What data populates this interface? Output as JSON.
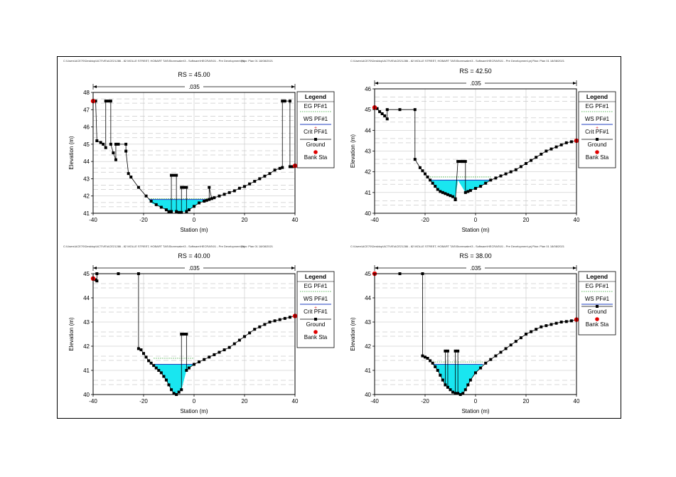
{
  "header": {
    "path": "C:\\Users\\ACE70\\Desktop\\ACTIVE\\ACE21286 - 82 MOLLE STREET, HOBART TAS\\Stormwater\\3 - Software\\HECRAS\\01 - Pre Development.prj",
    "plan": "Plan: Plan 01    18/08/2021"
  },
  "legend": {
    "title": "Legend",
    "items": [
      {
        "key": "eg",
        "label": "EG PF#1",
        "color": "#2ca02c"
      },
      {
        "key": "ws",
        "label": "WS PF#1",
        "color": "#1f3fbf"
      },
      {
        "key": "crit",
        "label": "Crit PF#1",
        "color": "#e0282e"
      },
      {
        "key": "ground",
        "label": "Ground",
        "color": "#000000"
      },
      {
        "key": "bank",
        "label": "Bank Sta",
        "color": "#e00000"
      }
    ]
  },
  "chart_data": [
    {
      "type": "line",
      "title": "RS = 45.00",
      "xlabel": "Station (m)",
      "ylabel": "Elevation (m)",
      "manning": ".035",
      "xlim": [
        -40,
        40
      ],
      "ylim": [
        41,
        48
      ],
      "xticks": [
        -40,
        -20,
        0,
        20,
        40
      ],
      "yticks": [
        41,
        42,
        43,
        44,
        45,
        46,
        47,
        48
      ],
      "grid": true,
      "legend_position": "right",
      "legend_items": [
        "eg",
        "ws",
        "crit",
        "ground",
        "bank"
      ],
      "ws": 41.8,
      "eg": 41.85,
      "ground": [
        [
          -40,
          47.5
        ],
        [
          -39,
          47.5
        ],
        [
          -38.5,
          45.2
        ],
        [
          -37,
          45.1
        ],
        [
          -36,
          45.0
        ],
        [
          -35,
          44.8
        ],
        [
          -35,
          47.5
        ],
        [
          -34,
          47.5
        ],
        [
          -33,
          47.5
        ],
        [
          -33,
          45.0
        ],
        [
          -32,
          44.5
        ],
        [
          -31,
          44.1
        ],
        [
          -31,
          45.0
        ],
        [
          -30,
          45.0
        ],
        [
          -27,
          45.0
        ],
        [
          -27,
          44.6
        ],
        [
          -26,
          43.3
        ],
        [
          -25,
          43.1
        ],
        [
          -22,
          42.5
        ],
        [
          -19,
          42.0
        ],
        [
          -17,
          41.7
        ],
        [
          -15,
          41.5
        ],
        [
          -13,
          41.35
        ],
        [
          -11,
          41.2
        ],
        [
          -10,
          41.1
        ],
        [
          -9,
          41.1
        ],
        [
          -9,
          43.2
        ],
        [
          -8,
          43.2
        ],
        [
          -7,
          43.2
        ],
        [
          -7,
          41.1
        ],
        [
          -6,
          41.05
        ],
        [
          -5,
          41.05
        ],
        [
          -5,
          42.5
        ],
        [
          -4,
          42.5
        ],
        [
          -4,
          42.5
        ],
        [
          -3,
          42.5
        ],
        [
          -3,
          41.1
        ],
        [
          -2,
          41.2
        ],
        [
          0,
          41.4
        ],
        [
          2,
          41.6
        ],
        [
          4,
          41.7
        ],
        [
          5,
          41.75
        ],
        [
          6,
          41.8
        ],
        [
          6,
          42.5
        ],
        [
          7,
          41.85
        ],
        [
          8,
          41.9
        ],
        [
          10,
          42.0
        ],
        [
          12,
          42.1
        ],
        [
          14,
          42.2
        ],
        [
          16,
          42.3
        ],
        [
          18,
          42.45
        ],
        [
          20,
          42.55
        ],
        [
          22,
          42.7
        ],
        [
          24,
          42.85
        ],
        [
          26,
          43.0
        ],
        [
          28,
          43.15
        ],
        [
          30,
          43.3
        ],
        [
          32,
          43.5
        ],
        [
          34,
          43.6
        ],
        [
          35,
          43.65
        ],
        [
          35,
          47.5
        ],
        [
          36,
          47.5
        ],
        [
          38,
          47.5
        ],
        [
          38,
          43.7
        ],
        [
          39,
          43.7
        ],
        [
          40,
          43.75
        ]
      ],
      "water": [
        [
          -18,
          41.8
        ],
        [
          -16.5,
          41.55
        ],
        [
          -15,
          41.5
        ],
        [
          -13,
          41.35
        ],
        [
          -11,
          41.2
        ],
        [
          -9,
          41.1
        ],
        [
          -7,
          41.1
        ],
        [
          -6,
          41.05
        ],
        [
          -3,
          41.1
        ],
        [
          0,
          41.4
        ],
        [
          2,
          41.6
        ],
        [
          4,
          41.7
        ],
        [
          6,
          41.8
        ]
      ],
      "bank": [
        [
          -40,
          47.5
        ],
        [
          40,
          43.75
        ]
      ]
    },
    {
      "type": "line",
      "title": "RS = 42.50",
      "xlabel": "Station (m)",
      "ylabel": "Elevation (m)",
      "manning": ".035",
      "xlim": [
        -40,
        40
      ],
      "ylim": [
        40,
        46
      ],
      "xticks": [
        -40,
        -20,
        0,
        20,
        40
      ],
      "yticks": [
        40,
        41,
        42,
        43,
        44,
        45,
        46
      ],
      "grid": true,
      "legend_position": "right",
      "legend_items": [
        "eg",
        "ws",
        "crit",
        "ground",
        "bank"
      ],
      "ws": 41.6,
      "eg": 41.75,
      "ground": [
        [
          -40,
          45.1
        ],
        [
          -39,
          45.05
        ],
        [
          -38,
          44.9
        ],
        [
          -37,
          44.8
        ],
        [
          -36,
          44.7
        ],
        [
          -35,
          44.55
        ],
        [
          -35,
          45.0
        ],
        [
          -30,
          45.0
        ],
        [
          -24,
          45.0
        ],
        [
          -24,
          42.6
        ],
        [
          -22,
          42.2
        ],
        [
          -21,
          42.05
        ],
        [
          -20,
          41.9
        ],
        [
          -19,
          41.75
        ],
        [
          -18,
          41.6
        ],
        [
          -17,
          41.45
        ],
        [
          -16,
          41.3
        ],
        [
          -15,
          41.15
        ],
        [
          -14,
          41.05
        ],
        [
          -13,
          41.0
        ],
        [
          -12,
          40.95
        ],
        [
          -11,
          40.9
        ],
        [
          -10,
          40.85
        ],
        [
          -9,
          40.8
        ],
        [
          -8,
          40.7
        ],
        [
          -8,
          40.65
        ],
        [
          -7,
          42.5
        ],
        [
          -6,
          42.5
        ],
        [
          -5,
          42.5
        ],
        [
          -4,
          42.5
        ],
        [
          -4,
          41.0
        ],
        [
          -3,
          41.05
        ],
        [
          -2,
          41.1
        ],
        [
          0,
          41.2
        ],
        [
          2,
          41.3
        ],
        [
          4,
          41.45
        ],
        [
          6,
          41.6
        ],
        [
          8,
          41.7
        ],
        [
          10,
          41.8
        ],
        [
          12,
          41.9
        ],
        [
          14,
          42.0
        ],
        [
          16,
          42.1
        ],
        [
          18,
          42.25
        ],
        [
          20,
          42.4
        ],
        [
          22,
          42.55
        ],
        [
          24,
          42.7
        ],
        [
          26,
          42.85
        ],
        [
          28,
          43.0
        ],
        [
          30,
          43.1
        ],
        [
          32,
          43.2
        ],
        [
          34,
          43.3
        ],
        [
          36,
          43.4
        ],
        [
          38,
          43.45
        ],
        [
          40,
          43.5
        ]
      ],
      "water": [
        [
          -18,
          41.6
        ],
        [
          -17,
          41.45
        ],
        [
          -16,
          41.3
        ],
        [
          -15,
          41.15
        ],
        [
          -14,
          41.05
        ],
        [
          -13,
          41.0
        ],
        [
          -11,
          40.9
        ],
        [
          -9,
          40.8
        ],
        [
          -8,
          40.7
        ],
        [
          -7,
          41.6
        ],
        [
          -4,
          41.0
        ],
        [
          -2,
          41.1
        ],
        [
          0,
          41.2
        ],
        [
          2,
          41.3
        ],
        [
          4,
          41.45
        ],
        [
          6,
          41.6
        ]
      ],
      "bank": [
        [
          -40,
          45.1
        ],
        [
          40,
          43.5
        ]
      ]
    },
    {
      "type": "line",
      "title": "RS = 40.00",
      "xlabel": "Station (m)",
      "ylabel": "Elevation (m)",
      "manning": ".035",
      "xlim": [
        -40,
        40
      ],
      "ylim": [
        40,
        45
      ],
      "xticks": [
        -40,
        -20,
        0,
        20,
        40
      ],
      "yticks": [
        40,
        41,
        42,
        43,
        44,
        45
      ],
      "grid": true,
      "legend_position": "right",
      "legend_items": [
        "eg",
        "ws",
        "crit",
        "ground",
        "bank"
      ],
      "ws": 41.25,
      "eg": 41.5,
      "ground": [
        [
          -40,
          44.8
        ],
        [
          -39,
          44.75
        ],
        [
          -38.5,
          44.7
        ],
        [
          -38.5,
          45.0
        ],
        [
          -30,
          45.0
        ],
        [
          -22,
          45.0
        ],
        [
          -22,
          41.9
        ],
        [
          -21,
          41.85
        ],
        [
          -20,
          41.7
        ],
        [
          -19,
          41.55
        ],
        [
          -18,
          41.4
        ],
        [
          -17,
          41.3
        ],
        [
          -16,
          41.2
        ],
        [
          -15,
          41.1
        ],
        [
          -14,
          41.0
        ],
        [
          -13,
          40.9
        ],
        [
          -12,
          40.75
        ],
        [
          -11,
          40.6
        ],
        [
          -10,
          40.4
        ],
        [
          -9,
          40.2
        ],
        [
          -8,
          40.05
        ],
        [
          -7,
          40.0
        ],
        [
          -6,
          40.1
        ],
        [
          -5,
          40.2
        ],
        [
          -5,
          42.5
        ],
        [
          -4,
          42.5
        ],
        [
          -3,
          42.5
        ],
        [
          -3,
          41.0
        ],
        [
          -2,
          41.1
        ],
        [
          0,
          41.25
        ],
        [
          2,
          41.35
        ],
        [
          4,
          41.45
        ],
        [
          6,
          41.55
        ],
        [
          8,
          41.65
        ],
        [
          10,
          41.75
        ],
        [
          12,
          41.85
        ],
        [
          14,
          41.95
        ],
        [
          16,
          42.1
        ],
        [
          18,
          42.25
        ],
        [
          20,
          42.4
        ],
        [
          22,
          42.55
        ],
        [
          24,
          42.7
        ],
        [
          26,
          42.8
        ],
        [
          28,
          42.9
        ],
        [
          30,
          43.0
        ],
        [
          32,
          43.05
        ],
        [
          34,
          43.1
        ],
        [
          36,
          43.15
        ],
        [
          38,
          43.2
        ],
        [
          40,
          43.25
        ]
      ],
      "water": [
        [
          -16,
          41.25
        ],
        [
          -15,
          41.1
        ],
        [
          -14,
          41.0
        ],
        [
          -13,
          40.9
        ],
        [
          -12,
          40.75
        ],
        [
          -11,
          40.6
        ],
        [
          -10,
          40.4
        ],
        [
          -9,
          40.2
        ],
        [
          -8,
          40.05
        ],
        [
          -7,
          40.0
        ],
        [
          -6,
          40.1
        ],
        [
          -5,
          40.2
        ],
        [
          -3,
          41.0
        ],
        [
          -2,
          41.1
        ],
        [
          0,
          41.25
        ]
      ],
      "bank": [
        [
          -40,
          44.8
        ],
        [
          40,
          43.25
        ]
      ]
    },
    {
      "type": "line",
      "title": "RS = 38.00",
      "xlabel": "Station (m)",
      "ylabel": "Elevation (m)",
      "manning": ".035",
      "xlim": [
        -40,
        40
      ],
      "ylim": [
        40,
        45
      ],
      "xticks": [
        -40,
        -20,
        0,
        20,
        40
      ],
      "yticks": [
        40,
        41,
        42,
        43,
        44,
        45
      ],
      "grid": true,
      "legend_position": "right",
      "legend_items": [
        "eg",
        "ws",
        "ground",
        "bank"
      ],
      "ws": 41.25,
      "eg": 41.35,
      "ground": [
        [
          -40,
          45.0
        ],
        [
          -30,
          45.0
        ],
        [
          -21,
          45.0
        ],
        [
          -21,
          41.6
        ],
        [
          -20,
          41.55
        ],
        [
          -19,
          41.5
        ],
        [
          -18,
          41.4
        ],
        [
          -17,
          41.3
        ],
        [
          -16,
          41.15
        ],
        [
          -15,
          41.0
        ],
        [
          -14,
          40.8
        ],
        [
          -13,
          40.6
        ],
        [
          -12,
          40.4
        ],
        [
          -12,
          41.8
        ],
        [
          -11,
          41.8
        ],
        [
          -11,
          40.3
        ],
        [
          -10,
          40.2
        ],
        [
          -9,
          40.1
        ],
        [
          -8,
          40.05
        ],
        [
          -8,
          41.8
        ],
        [
          -7,
          41.8
        ],
        [
          -7,
          40.05
        ],
        [
          -6,
          40.0
        ],
        [
          -5,
          40.05
        ],
        [
          -4,
          40.2
        ],
        [
          -3,
          40.4
        ],
        [
          -2,
          40.6
        ],
        [
          0,
          40.9
        ],
        [
          2,
          41.1
        ],
        [
          4,
          41.3
        ],
        [
          6,
          41.45
        ],
        [
          8,
          41.6
        ],
        [
          10,
          41.75
        ],
        [
          12,
          41.9
        ],
        [
          14,
          42.05
        ],
        [
          16,
          42.2
        ],
        [
          18,
          42.35
        ],
        [
          20,
          42.5
        ],
        [
          22,
          42.6
        ],
        [
          24,
          42.7
        ],
        [
          26,
          42.8
        ],
        [
          28,
          42.85
        ],
        [
          30,
          42.9
        ],
        [
          32,
          42.95
        ],
        [
          34,
          43.0
        ],
        [
          36,
          43.02
        ],
        [
          38,
          43.05
        ],
        [
          40,
          43.1
        ]
      ],
      "water": [
        [
          -17,
          41.25
        ],
        [
          -16,
          41.15
        ],
        [
          -15,
          41.0
        ],
        [
          -14,
          40.8
        ],
        [
          -13,
          40.6
        ],
        [
          -12,
          40.4
        ],
        [
          -10,
          40.2
        ],
        [
          -8,
          40.05
        ],
        [
          -6,
          40.0
        ],
        [
          -4,
          40.2
        ],
        [
          -2,
          40.6
        ],
        [
          0,
          40.9
        ],
        [
          2,
          41.1
        ],
        [
          3,
          41.25
        ]
      ],
      "bank": [
        [
          -40,
          45.0
        ],
        [
          40,
          43.1
        ]
      ]
    }
  ]
}
